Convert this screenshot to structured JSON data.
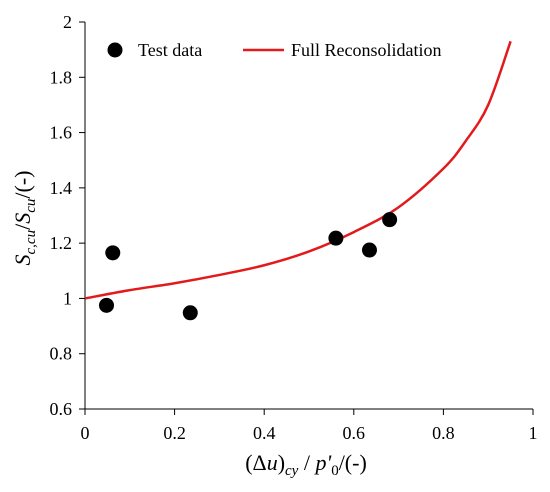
{
  "chart_data": {
    "type": "scatter",
    "xlabel": {
      "parts": [
        "(Δ",
        "u",
        ")",
        "cy",
        " / ",
        "p'",
        "0",
        "/(-)"
      ]
    },
    "ylabel": {
      "parts": [
        "S",
        "c,cu",
        "/",
        "S",
        "cu",
        "/(-)"
      ]
    },
    "xlim": [
      0,
      1
    ],
    "ylim": [
      0.6,
      2
    ],
    "xticks": [
      0,
      0.2,
      0.4,
      0.6,
      0.8,
      1
    ],
    "xtick_labels": [
      "0",
      "0.2",
      "0.4",
      "0.6",
      "0.8",
      "1"
    ],
    "yticks": [
      0.6,
      0.8,
      1.0,
      1.2,
      1.4,
      1.6,
      1.8,
      2.0
    ],
    "ytick_labels": [
      "0.6",
      "0.8",
      "1",
      "1.2",
      "1.4",
      "1.6",
      "1.8",
      "2"
    ],
    "grid": false,
    "legend_position": "top",
    "series": [
      {
        "name": "Test data",
        "kind": "scatter",
        "color": "#000000",
        "x": [
          0.048,
          0.062,
          0.235,
          0.56,
          0.635,
          0.68
        ],
        "y": [
          0.975,
          1.165,
          0.948,
          1.218,
          1.175,
          1.285
        ]
      },
      {
        "name": "Full Reconsolidation",
        "kind": "line",
        "color": "#e31a1c",
        "x": [
          0.0,
          0.1,
          0.2,
          0.3,
          0.4,
          0.5,
          0.6,
          0.7,
          0.8,
          0.85,
          0.9,
          0.95
        ],
        "y": [
          1.0,
          1.03,
          1.055,
          1.085,
          1.12,
          1.17,
          1.24,
          1.33,
          1.47,
          1.57,
          1.7,
          1.93
        ]
      }
    ]
  }
}
